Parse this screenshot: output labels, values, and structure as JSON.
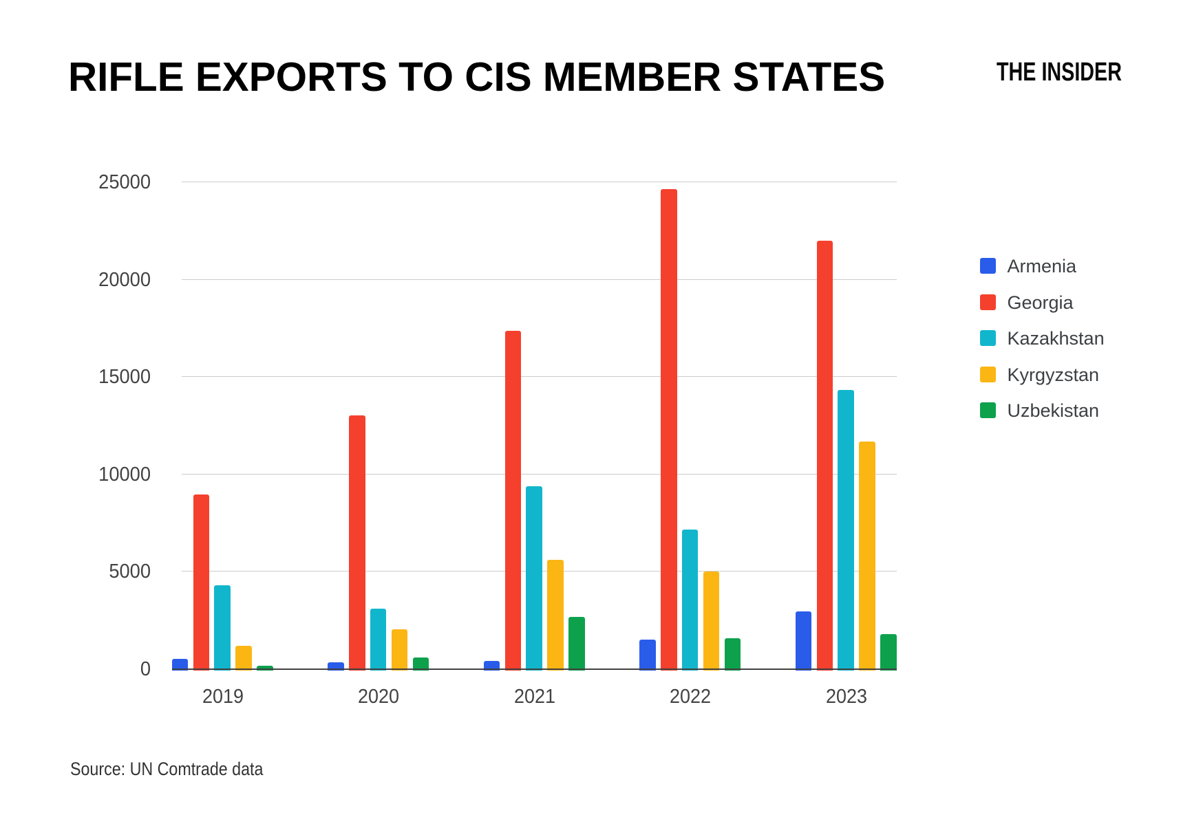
{
  "page": {
    "title": "RIFLE EXPORTS TO CIS MEMBER STATES",
    "branding": "THE INSIDER",
    "source_note": "Source: UN Comtrade data"
  },
  "chart_data": {
    "type": "bar",
    "title": "RIFLE EXPORTS TO CIS MEMBER STATES",
    "categories": [
      "2019",
      "2020",
      "2021",
      "2022",
      "2023"
    ],
    "series": [
      {
        "name": "Armenia",
        "color": "#2a5cea",
        "values": [
          500,
          350,
          400,
          1490,
          2940
        ]
      },
      {
        "name": "Georgia",
        "color": "#f4402d",
        "values": [
          8950,
          13030,
          17360,
          24620,
          21970
        ]
      },
      {
        "name": "Kazakhstan",
        "color": "#12b6cc",
        "values": [
          4300,
          3090,
          9360,
          7160,
          14330
        ]
      },
      {
        "name": "Kyrgyzstan",
        "color": "#fbb614",
        "values": [
          1180,
          2030,
          5600,
          5000,
          11660
        ]
      },
      {
        "name": "Uzbekistan",
        "color": "#0da14c",
        "values": [
          160,
          580,
          2650,
          1560,
          1770
        ]
      }
    ],
    "xlabel": "",
    "ylabel": "",
    "ylim": [
      0,
      25000
    ],
    "yticks": [
      0,
      5000,
      10000,
      15000,
      20000,
      25000
    ],
    "grid": true,
    "legend_position": "right",
    "source": "Source: UN Comtrade data"
  },
  "style": {
    "background": "#ffffff",
    "title_color": "#000000",
    "axis_text_color": "#424242",
    "legend_text_color": "#3c4043",
    "gridline_color": "#cccccc",
    "axis_line_color": "#424242"
  }
}
